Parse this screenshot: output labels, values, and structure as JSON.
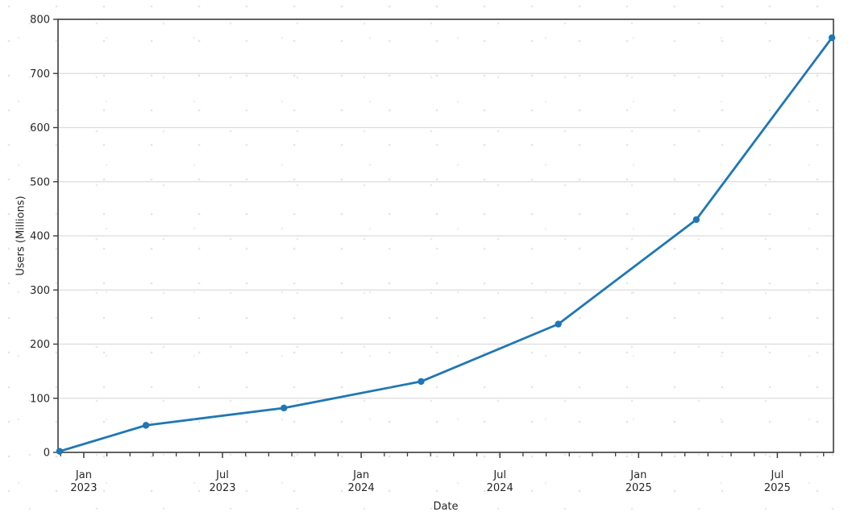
{
  "figure": {
    "background": "#ffffff",
    "text_color": "#262626",
    "spine_color": "#3c3c3c"
  },
  "chart_data": {
    "type": "line",
    "title": "",
    "xlabel": "Date",
    "ylabel": "Users (Millions)",
    "grid": {
      "horizontal": true,
      "vertical": false,
      "color": "#dcdcdc"
    },
    "legend": "none",
    "y_axis": {
      "min": 0,
      "max": 800,
      "tick_step": 100,
      "tick_labels": [
        "0",
        "100",
        "200",
        "300",
        "400",
        "500",
        "600",
        "700",
        "800"
      ]
    },
    "x_axis": {
      "start_date": "2022-11-28",
      "end_date": "2025-09-14",
      "minor_tick_interval": "month",
      "major_ticks": [
        {
          "date": "2023-01-01",
          "label_line1": "Jan",
          "label_line2": "2023"
        },
        {
          "date": "2023-07-01",
          "label_line1": "Jul",
          "label_line2": "2023"
        },
        {
          "date": "2024-01-01",
          "label_line1": "Jan",
          "label_line2": "2024"
        },
        {
          "date": "2024-07-01",
          "label_line1": "Jul",
          "label_line2": "2024"
        },
        {
          "date": "2025-01-01",
          "label_line1": "Jan",
          "label_line2": "2025"
        },
        {
          "date": "2025-07-01",
          "label_line1": "Jul",
          "label_line2": "2025"
        }
      ]
    },
    "series": [
      {
        "name": "Users",
        "color": "#1f77b4",
        "marker": "circle",
        "points": [
          {
            "date": "2022-11-30",
            "value": 2
          },
          {
            "date": "2023-03-22",
            "value": 50
          },
          {
            "date": "2023-09-21",
            "value": 82
          },
          {
            "date": "2024-03-19",
            "value": 131
          },
          {
            "date": "2024-09-17",
            "value": 237
          },
          {
            "date": "2025-03-16",
            "value": 430
          },
          {
            "date": "2025-09-12",
            "value": 766
          }
        ]
      }
    ]
  }
}
